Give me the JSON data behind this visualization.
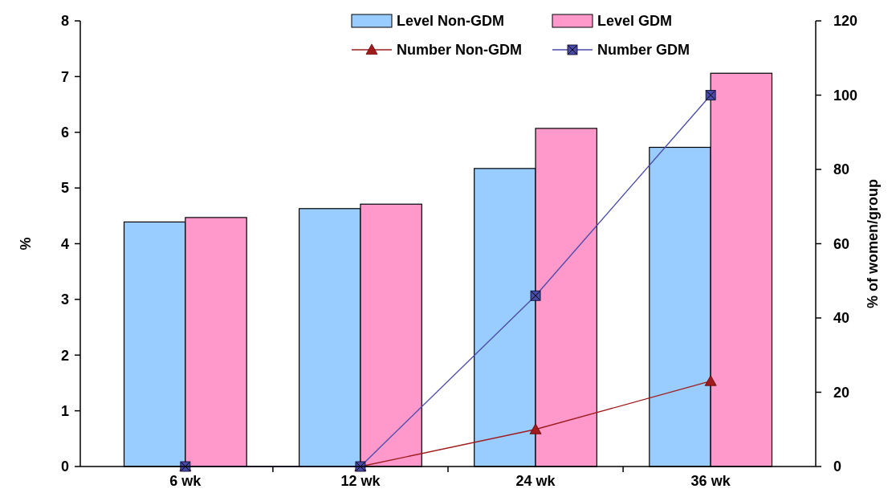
{
  "chart_data": {
    "type": "bar",
    "categories": [
      "6 wk",
      "12 wk",
      "24 wk",
      "36 wk"
    ],
    "ylabel": "%",
    "y2label": "% of women/group",
    "ylim": [
      0,
      8
    ],
    "yticks": [
      0,
      1,
      2,
      3,
      4,
      5,
      6,
      7,
      8
    ],
    "y2lim": [
      0,
      120
    ],
    "y2ticks": [
      0,
      20,
      40,
      60,
      80,
      100,
      120
    ],
    "legend": "top right",
    "grid": false,
    "series": [
      {
        "name": "Level Non-GDM",
        "color": "#99ccff",
        "values": [
          4.39,
          4.63,
          5.35,
          5.73
        ]
      },
      {
        "name": "Level GDM",
        "color": "#ff99cc",
        "values": [
          4.47,
          4.71,
          6.07,
          7.06
        ]
      },
      {
        "name": "Number Non-GDM",
        "type": "line",
        "axis": "y2",
        "color": "#a01c1c",
        "marker": "triangle",
        "values": [
          0,
          0,
          10,
          23
        ]
      },
      {
        "name": "Number GDM",
        "type": "line",
        "axis": "y2",
        "color": "#4a4aa8",
        "marker": "square",
        "values": [
          0,
          0,
          46,
          100
        ]
      }
    ]
  }
}
